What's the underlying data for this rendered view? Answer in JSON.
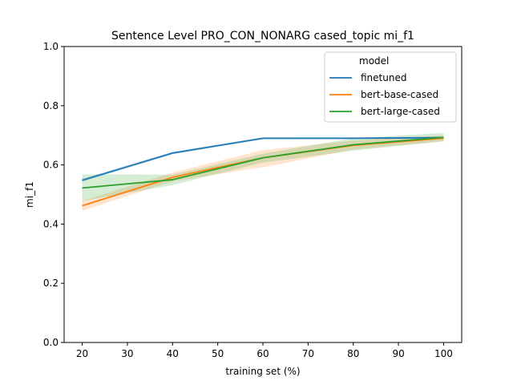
{
  "chart_data": {
    "type": "line",
    "title": "Sentence Level PRO_CON_NONARG cased_topic mi_f1",
    "xlabel": "training set (%)",
    "ylabel": "mi_f1",
    "xlim": [
      16,
      104
    ],
    "ylim": [
      0.0,
      1.0
    ],
    "xticks": [
      20,
      30,
      40,
      50,
      60,
      70,
      80,
      90,
      100
    ],
    "yticks": [
      0.0,
      0.2,
      0.4,
      0.6,
      0.8,
      1.0
    ],
    "xtick_labels": [
      "20",
      "30",
      "40",
      "50",
      "60",
      "70",
      "80",
      "90",
      "100"
    ],
    "ytick_labels": [
      "0.0",
      "0.2",
      "0.4",
      "0.6",
      "0.8",
      "1.0"
    ],
    "grid": false,
    "legend": {
      "title": "model",
      "position": "top-right"
    },
    "x": [
      20,
      40,
      60,
      80,
      100
    ],
    "series": [
      {
        "name": "finetuned",
        "color": "#1f77b4",
        "values": [
          0.548,
          0.64,
          0.69,
          0.69,
          0.692
        ],
        "ci_low": [
          0.543,
          0.636,
          0.686,
          0.687,
          0.688
        ],
        "ci_high": [
          0.553,
          0.645,
          0.693,
          0.693,
          0.696
        ]
      },
      {
        "name": "bert-base-cased",
        "color": "#ff7f0e",
        "values": [
          0.462,
          0.558,
          0.624,
          0.666,
          0.69
        ],
        "ci_low": [
          0.445,
          0.545,
          0.592,
          0.652,
          0.68
        ],
        "ci_high": [
          0.478,
          0.574,
          0.65,
          0.682,
          0.7
        ]
      },
      {
        "name": "bert-large-cased",
        "color": "#2ca02c",
        "values": [
          0.522,
          0.55,
          0.624,
          0.668,
          0.693
        ],
        "ci_low": [
          0.478,
          0.532,
          0.608,
          0.648,
          0.68
        ],
        "ci_high": [
          0.568,
          0.567,
          0.638,
          0.69,
          0.708
        ]
      }
    ]
  }
}
